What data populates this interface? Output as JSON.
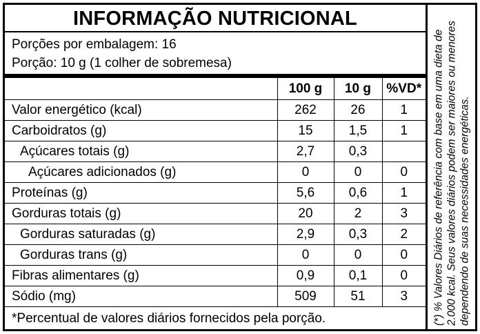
{
  "title": "INFORMAÇÃO NUTRICIONAL",
  "serving": {
    "per_package": "Porções por embalagem: 16",
    "portion": "Porção: 10 g (1 colher de sobremesa)"
  },
  "table": {
    "headers": [
      "100 g",
      "10 g",
      "%VD*"
    ],
    "rows": [
      {
        "label": "Valor energético (kcal)",
        "v100": "262",
        "v10": "26",
        "vd": "1"
      },
      {
        "label": "Carboidratos (g)",
        "v100": "15",
        "v10": "1,5",
        "vd": "1"
      },
      {
        "label": "Açúcares totais (g)",
        "v100": "2,7",
        "v10": "0,3",
        "vd": ""
      },
      {
        "label": "Açúcares adicionados (g)",
        "v100": "0",
        "v10": "0",
        "vd": "0"
      },
      {
        "label": "Proteínas (g)",
        "v100": "5,6",
        "v10": "0,6",
        "vd": "1"
      },
      {
        "label": "Gorduras totais (g)",
        "v100": "20",
        "v10": "2",
        "vd": "3"
      },
      {
        "label": "Gorduras saturadas (g)",
        "v100": "2,9",
        "v10": "0,3",
        "vd": "2"
      },
      {
        "label": "Gorduras trans (g)",
        "v100": "0",
        "v10": "0",
        "vd": "0"
      },
      {
        "label": "Fibras alimentares (g)",
        "v100": "0,9",
        "v10": "0,1",
        "vd": "0"
      },
      {
        "label": "Sódio (mg)",
        "v100": "509",
        "v10": "51",
        "vd": "3"
      }
    ]
  },
  "footer": "*Percentual de valores diários fornecidos pela porção.",
  "side_note": "(*) % Valores Diários de referência com base em uma dieta de 2.000 kcal. Seus valores diários podem ser maiores ou menores dependendo de suas necessidades energéticas."
}
